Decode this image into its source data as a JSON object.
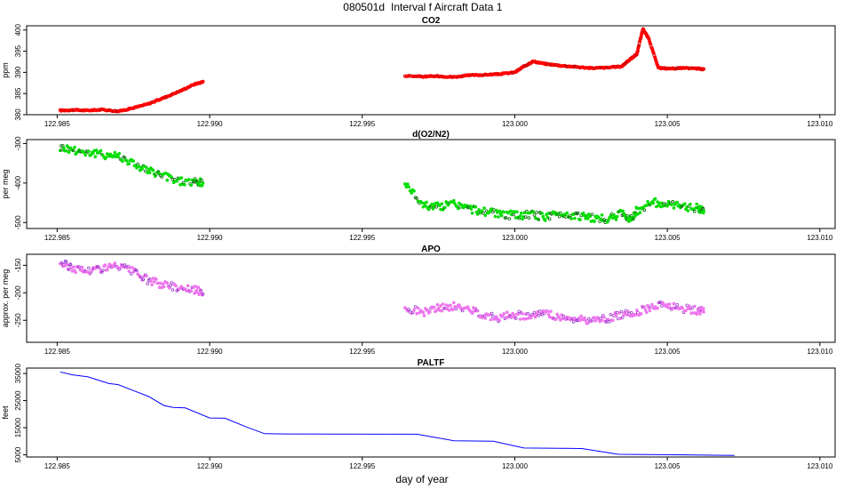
{
  "figure": {
    "title_id": "080501d",
    "title_text": "Interval f Aircraft Data 1",
    "xlabel": "day of year"
  },
  "colors": {
    "co2": "#ff0000",
    "o2n2": "#00dd00",
    "apo": "#ee77ee",
    "apo_dark": "#9933cc",
    "paltf": "#0000ff",
    "axis": "#000000"
  },
  "chart_data": [
    {
      "type": "scatter",
      "title": "CO2",
      "ylabel": "ppm",
      "xlim": [
        122.984,
        123.0105
      ],
      "ylim": [
        380,
        401
      ],
      "x_ticks": [
        "122.985",
        "122.990",
        "122.995",
        "123.000",
        "123.005",
        "123.010"
      ],
      "y_ticks": [
        "380",
        "385",
        "390",
        "395",
        "400"
      ],
      "grid": false,
      "series": [
        {
          "color": "#ff0000",
          "points": [
            [
              122.9851,
              381.0
            ],
            [
              122.9855,
              381.1
            ],
            [
              122.986,
              381.0
            ],
            [
              122.9865,
              381.2
            ],
            [
              122.987,
              380.8
            ],
            [
              122.9875,
              381.6
            ],
            [
              122.988,
              382.6
            ],
            [
              122.9885,
              384.0
            ],
            [
              122.989,
              385.5
            ],
            [
              122.9895,
              387.2
            ],
            [
              122.9898,
              387.8
            ],
            [
              122.9964,
              389.2
            ],
            [
              122.997,
              389.0
            ],
            [
              122.9975,
              389.1
            ],
            [
              122.998,
              388.9
            ],
            [
              122.9985,
              389.3
            ],
            [
              122.999,
              389.4
            ],
            [
              122.9995,
              389.6
            ],
            [
              123.0,
              390.0
            ],
            [
              123.0003,
              391.4
            ],
            [
              123.0006,
              392.6
            ],
            [
              123.001,
              392.0
            ],
            [
              123.0015,
              391.6
            ],
            [
              123.002,
              391.3
            ],
            [
              123.0025,
              391.0
            ],
            [
              123.003,
              391.1
            ],
            [
              123.0035,
              391.4
            ],
            [
              123.0038,
              393.2
            ],
            [
              123.004,
              394.3
            ],
            [
              123.0042,
              400.3
            ],
            [
              123.0044,
              397.8
            ],
            [
              123.0047,
              391.1
            ],
            [
              123.005,
              390.9
            ],
            [
              123.0055,
              391.0
            ],
            [
              123.006,
              390.9
            ],
            [
              123.0062,
              390.7
            ]
          ]
        }
      ]
    },
    {
      "type": "scatter",
      "title": "d(O2/N2)",
      "ylabel": "per meg",
      "xlim": [
        122.984,
        123.0105
      ],
      "ylim": [
        -515,
        -290
      ],
      "x_ticks": [
        "122.985",
        "122.990",
        "122.995",
        "123.000",
        "123.005",
        "123.010"
      ],
      "y_ticks": [
        "-500",
        "-400",
        "-300"
      ],
      "grid": false,
      "series": [
        {
          "color": "#00dd00",
          "points": [
            [
              122.9851,
              -310
            ],
            [
              122.9855,
              -315
            ],
            [
              122.986,
              -322
            ],
            [
              122.9865,
              -328
            ],
            [
              122.987,
              -330
            ],
            [
              122.9875,
              -350
            ],
            [
              122.988,
              -370
            ],
            [
              122.9885,
              -382
            ],
            [
              122.989,
              -395
            ],
            [
              122.9895,
              -398
            ],
            [
              122.9898,
              -400
            ],
            [
              122.9964,
              -400
            ],
            [
              122.997,
              -455
            ],
            [
              122.9975,
              -460
            ],
            [
              122.998,
              -452
            ],
            [
              122.9985,
              -465
            ],
            [
              122.999,
              -472
            ],
            [
              122.9995,
              -478
            ],
            [
              123.0,
              -482
            ],
            [
              123.0005,
              -480
            ],
            [
              123.001,
              -485
            ],
            [
              123.0015,
              -478
            ],
            [
              123.002,
              -482
            ],
            [
              123.0025,
              -488
            ],
            [
              123.003,
              -492
            ],
            [
              123.0035,
              -478
            ],
            [
              123.0038,
              -490
            ],
            [
              123.004,
              -470
            ],
            [
              123.0045,
              -448
            ],
            [
              123.005,
              -455
            ],
            [
              123.0055,
              -460
            ],
            [
              123.006,
              -462
            ],
            [
              123.0062,
              -470
            ]
          ]
        }
      ]
    },
    {
      "type": "scatter",
      "title": "APO",
      "ylabel": "approx. per meg",
      "xlim": [
        122.984,
        123.0105
      ],
      "ylim": [
        -290,
        -130
      ],
      "x_ticks": [
        "122.985",
        "122.990",
        "122.995",
        "123.000",
        "123.005",
        "123.010"
      ],
      "y_ticks": [
        "-250",
        "-200",
        "-150"
      ],
      "grid": false,
      "series": [
        {
          "color": "#ee77ee",
          "points": [
            [
              122.9851,
              -145
            ],
            [
              122.9855,
              -155
            ],
            [
              122.986,
              -160
            ],
            [
              122.9865,
              -155
            ],
            [
              122.987,
              -152
            ],
            [
              122.9875,
              -162
            ],
            [
              122.988,
              -178
            ],
            [
              122.9885,
              -185
            ],
            [
              122.989,
              -190
            ],
            [
              122.9895,
              -195
            ],
            [
              122.9898,
              -198
            ],
            [
              122.9964,
              -228
            ],
            [
              122.997,
              -235
            ],
            [
              122.9975,
              -228
            ],
            [
              122.998,
              -225
            ],
            [
              122.9985,
              -230
            ],
            [
              122.999,
              -240
            ],
            [
              122.9995,
              -245
            ],
            [
              123.0,
              -240
            ],
            [
              123.0005,
              -242
            ],
            [
              123.001,
              -238
            ],
            [
              123.0015,
              -245
            ],
            [
              123.002,
              -248
            ],
            [
              123.0025,
              -250
            ],
            [
              123.003,
              -248
            ],
            [
              123.0035,
              -240
            ],
            [
              123.004,
              -235
            ],
            [
              123.0045,
              -225
            ],
            [
              123.005,
              -222
            ],
            [
              123.0055,
              -228
            ],
            [
              123.006,
              -232
            ],
            [
              123.0062,
              -235
            ]
          ]
        }
      ]
    },
    {
      "type": "line",
      "title": "PALTF",
      "ylabel": "feet",
      "xlim": [
        122.984,
        123.0105
      ],
      "ylim": [
        4200,
        37000
      ],
      "x_ticks": [
        "122.985",
        "122.990",
        "122.995",
        "123.000",
        "123.005",
        "123.010"
      ],
      "y_ticks": [
        "5000",
        "15000",
        "25000",
        "35000"
      ],
      "grid": false,
      "series": [
        {
          "color": "#0000ff",
          "points": [
            [
              122.9851,
              35600
            ],
            [
              122.9855,
              34500
            ],
            [
              122.986,
              33800
            ],
            [
              122.9867,
              31300
            ],
            [
              122.987,
              30900
            ],
            [
              122.9875,
              28700
            ],
            [
              122.988,
              26500
            ],
            [
              122.9885,
              23200
            ],
            [
              122.9888,
              22500
            ],
            [
              122.9892,
              22300
            ],
            [
              122.99,
              18600
            ],
            [
              122.9905,
              18500
            ],
            [
              122.9912,
              15300
            ],
            [
              122.9918,
              12800
            ],
            [
              122.9925,
              12700
            ],
            [
              122.9968,
              12600
            ],
            [
              122.998,
              10200
            ],
            [
              122.9993,
              10000
            ],
            [
              123.0003,
              7500
            ],
            [
              123.0015,
              7400
            ],
            [
              123.0022,
              7300
            ],
            [
              123.0034,
              5200
            ],
            [
              123.0043,
              5100
            ],
            [
              123.0056,
              5000
            ],
            [
              123.0072,
              4800
            ]
          ]
        }
      ]
    }
  ]
}
